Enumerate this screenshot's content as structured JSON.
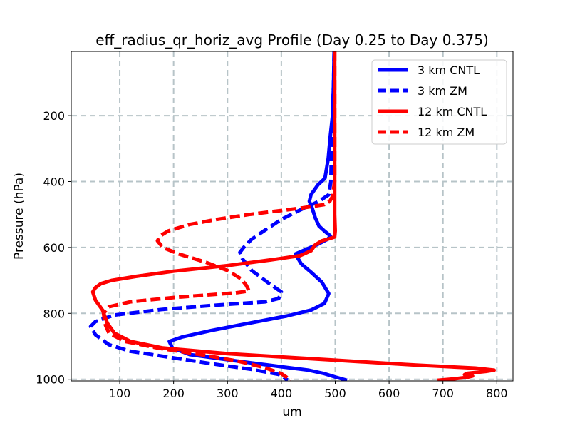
{
  "chart_data": {
    "type": "line",
    "title": "eff_radius_qr_horiz_avg Profile (Day 0.25 to Day 0.375)",
    "xlabel": "um",
    "ylabel": "Pressure (hPa)",
    "xlim": [
      10,
      830
    ],
    "ylim": [
      1005,
      5
    ],
    "x_ticks": [
      100,
      200,
      300,
      400,
      500,
      600,
      700,
      800
    ],
    "y_ticks": [
      200,
      400,
      600,
      800,
      1000
    ],
    "grid": true,
    "legend_position": "upper-right",
    "series": [
      {
        "name": "3 km CNTL",
        "color": "#0000ff",
        "dash": "solid",
        "points": [
          [
            498,
            5
          ],
          [
            497,
            100
          ],
          [
            495,
            200
          ],
          [
            491,
            260
          ],
          [
            487,
            330
          ],
          [
            481,
            390
          ],
          [
            468,
            410
          ],
          [
            455,
            440
          ],
          [
            452,
            460
          ],
          [
            457,
            480
          ],
          [
            463,
            510
          ],
          [
            470,
            535
          ],
          [
            480,
            550
          ],
          [
            491,
            565
          ],
          [
            486,
            575
          ],
          [
            468,
            590
          ],
          [
            447,
            605
          ],
          [
            440,
            610
          ],
          [
            426,
            620
          ],
          [
            437,
            650
          ],
          [
            455,
            675
          ],
          [
            475,
            705
          ],
          [
            488,
            740
          ],
          [
            480,
            770
          ],
          [
            455,
            790
          ],
          [
            410,
            808
          ],
          [
            340,
            830
          ],
          [
            270,
            852
          ],
          [
            215,
            872
          ],
          [
            192,
            885
          ],
          [
            198,
            905
          ],
          [
            230,
            925
          ],
          [
            320,
            945
          ],
          [
            400,
            962
          ],
          [
            450,
            972
          ],
          [
            478,
            982
          ],
          [
            500,
            993
          ],
          [
            522,
            1003
          ]
        ]
      },
      {
        "name": "3 km ZM",
        "color": "#0000ff",
        "dash": "dashed",
        "points": [
          [
            498,
            5
          ],
          [
            497,
            100
          ],
          [
            495,
            200
          ],
          [
            493,
            300
          ],
          [
            492,
            400
          ],
          [
            488,
            440
          ],
          [
            470,
            460
          ],
          [
            430,
            490
          ],
          [
            400,
            515
          ],
          [
            372,
            545
          ],
          [
            345,
            575
          ],
          [
            330,
            600
          ],
          [
            323,
            615
          ],
          [
            328,
            635
          ],
          [
            345,
            670
          ],
          [
            378,
            710
          ],
          [
            400,
            735
          ],
          [
            395,
            755
          ],
          [
            370,
            765
          ],
          [
            280,
            775
          ],
          [
            180,
            788
          ],
          [
            90,
            805
          ],
          [
            55,
            825
          ],
          [
            46,
            840
          ],
          [
            55,
            865
          ],
          [
            80,
            895
          ],
          [
            120,
            915
          ],
          [
            200,
            935
          ],
          [
            280,
            955
          ],
          [
            345,
            970
          ],
          [
            395,
            985
          ],
          [
            412,
            1003
          ]
        ]
      },
      {
        "name": "12 km CNTL",
        "color": "#ff0000",
        "dash": "solid",
        "points": [
          [
            499,
            5
          ],
          [
            499,
            100
          ],
          [
            499,
            200
          ],
          [
            499,
            300
          ],
          [
            499,
            400
          ],
          [
            499,
            500
          ],
          [
            500,
            550
          ],
          [
            499,
            568
          ],
          [
            490,
            573
          ],
          [
            475,
            580
          ],
          [
            463,
            592
          ],
          [
            455,
            610
          ],
          [
            435,
            625
          ],
          [
            380,
            638
          ],
          [
            300,
            655
          ],
          [
            200,
            672
          ],
          [
            130,
            688
          ],
          [
            85,
            700
          ],
          [
            65,
            710
          ],
          [
            55,
            722
          ],
          [
            50,
            735
          ],
          [
            55,
            760
          ],
          [
            68,
            790
          ],
          [
            77,
            830
          ],
          [
            90,
            860
          ],
          [
            120,
            885
          ],
          [
            180,
            905
          ],
          [
            300,
            922
          ],
          [
            500,
            942
          ],
          [
            650,
            957
          ],
          [
            760,
            966
          ],
          [
            795,
            972
          ],
          [
            780,
            976
          ],
          [
            745,
            982
          ],
          [
            740,
            986
          ],
          [
            755,
            990
          ],
          [
            745,
            994
          ],
          [
            720,
            999
          ],
          [
            690,
            1003
          ]
        ]
      },
      {
        "name": "12 km ZM",
        "color": "#ff0000",
        "dash": "dashed",
        "points": [
          [
            499,
            5
          ],
          [
            499,
            100
          ],
          [
            499,
            200
          ],
          [
            499,
            300
          ],
          [
            499,
            400
          ],
          [
            495,
            445
          ],
          [
            490,
            460
          ],
          [
            480,
            470
          ],
          [
            440,
            480
          ],
          [
            400,
            488
          ],
          [
            340,
            500
          ],
          [
            280,
            515
          ],
          [
            230,
            530
          ],
          [
            190,
            550
          ],
          [
            175,
            565
          ],
          [
            170,
            580
          ],
          [
            180,
            600
          ],
          [
            210,
            620
          ],
          [
            260,
            645
          ],
          [
            300,
            670
          ],
          [
            325,
            695
          ],
          [
            335,
            715
          ],
          [
            340,
            732
          ],
          [
            315,
            738
          ],
          [
            200,
            752
          ],
          [
            120,
            765
          ],
          [
            80,
            780
          ],
          [
            70,
            800
          ],
          [
            72,
            830
          ],
          [
            80,
            860
          ],
          [
            110,
            885
          ],
          [
            170,
            905
          ],
          [
            250,
            925
          ],
          [
            320,
            945
          ],
          [
            370,
            965
          ],
          [
            400,
            983
          ],
          [
            418,
            1003
          ]
        ]
      }
    ]
  }
}
